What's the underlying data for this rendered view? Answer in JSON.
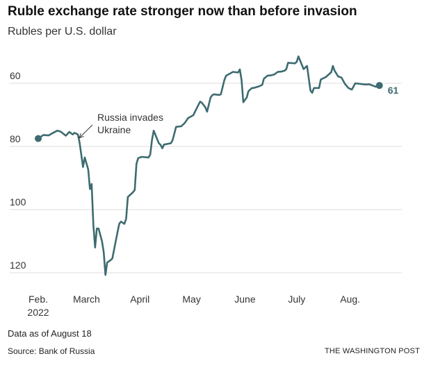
{
  "title": "Ruble exchange rate stronger now than before invasion",
  "subtitle": "Rubles per U.S. dollar",
  "note": "Data as of August 18",
  "source": "Source: Bank of Russia",
  "credit": "THE WASHINGTON POST",
  "colors": {
    "line": "#3d6b70",
    "grid": "#dddddd",
    "text": "#222222"
  },
  "chart_data": {
    "type": "line",
    "y_inverted": true,
    "ylim": [
      60,
      120
    ],
    "yticks": [
      "60",
      "80",
      "100",
      "120"
    ],
    "y_tick_values": [
      60,
      80,
      100,
      120
    ],
    "xlim": [
      "2022-02-01",
      "2022-08-31"
    ],
    "x_ticks": [
      {
        "date": "2022-02-01",
        "label": "Feb.",
        "label2": "2022"
      },
      {
        "date": "2022-03-01",
        "label": "March",
        "label2": ""
      },
      {
        "date": "2022-04-01",
        "label": "April",
        "label2": ""
      },
      {
        "date": "2022-05-01",
        "label": "May",
        "label2": ""
      },
      {
        "date": "2022-06-01",
        "label": "June",
        "label2": ""
      },
      {
        "date": "2022-07-01",
        "label": "July",
        "label2": ""
      },
      {
        "date": "2022-08-01",
        "label": "Aug.",
        "label2": ""
      }
    ],
    "annotation": {
      "date": "2022-02-24",
      "lines": [
        "Russia invades",
        "Ukraine"
      ]
    },
    "end_label": "61",
    "grid": true,
    "series": [
      {
        "points": [
          [
            "2022-02-01",
            77.5
          ],
          [
            "2022-02-04",
            76.4
          ],
          [
            "2022-02-07",
            76.5
          ],
          [
            "2022-02-09",
            75.9
          ],
          [
            "2022-02-12",
            75.0
          ],
          [
            "2022-02-14",
            75.3
          ],
          [
            "2022-02-17",
            76.6
          ],
          [
            "2022-02-19",
            75.4
          ],
          [
            "2022-02-21",
            76.2
          ],
          [
            "2022-02-22",
            75.7
          ],
          [
            "2022-02-24",
            76.2
          ],
          [
            "2022-02-25",
            78.8
          ],
          [
            "2022-02-27",
            86.5
          ],
          [
            "2022-02-28",
            83.5
          ],
          [
            "2022-03-02",
            87.3
          ],
          [
            "2022-03-03",
            93.5
          ],
          [
            "2022-03-04",
            91.9
          ],
          [
            "2022-03-05",
            104.8
          ],
          [
            "2022-03-06",
            112.0
          ],
          [
            "2022-03-07",
            106.0
          ],
          [
            "2022-03-08",
            106.0
          ],
          [
            "2022-03-10",
            110.0
          ],
          [
            "2022-03-11",
            113.5
          ],
          [
            "2022-03-12",
            120.7
          ],
          [
            "2022-03-13",
            116.8
          ],
          [
            "2022-03-15",
            116.0
          ],
          [
            "2022-03-16",
            115.5
          ],
          [
            "2022-03-18",
            110.0
          ],
          [
            "2022-03-20",
            104.5
          ],
          [
            "2022-03-21",
            103.8
          ],
          [
            "2022-03-23",
            104.5
          ],
          [
            "2022-03-24",
            103.0
          ],
          [
            "2022-03-25",
            96.0
          ],
          [
            "2022-03-26",
            95.5
          ],
          [
            "2022-03-28",
            94.5
          ],
          [
            "2022-03-29",
            93.8
          ],
          [
            "2022-03-30",
            85.5
          ],
          [
            "2022-03-31",
            83.7
          ],
          [
            "2022-04-02",
            83.3
          ],
          [
            "2022-04-06",
            83.5
          ],
          [
            "2022-04-07",
            82.6
          ],
          [
            "2022-04-08",
            78.0
          ],
          [
            "2022-04-09",
            75.0
          ],
          [
            "2022-04-12",
            79.0
          ],
          [
            "2022-04-13",
            79.5
          ],
          [
            "2022-04-14",
            80.6
          ],
          [
            "2022-04-15",
            79.4
          ],
          [
            "2022-04-19",
            79.0
          ],
          [
            "2022-04-20",
            78.0
          ],
          [
            "2022-04-22",
            73.8
          ],
          [
            "2022-04-25",
            73.6
          ],
          [
            "2022-04-27",
            72.6
          ],
          [
            "2022-04-29",
            71.0
          ],
          [
            "2022-05-02",
            70.1
          ],
          [
            "2022-05-04",
            67.9
          ],
          [
            "2022-05-05",
            66.8
          ],
          [
            "2022-05-06",
            65.8
          ],
          [
            "2022-05-07",
            66.2
          ],
          [
            "2022-05-09",
            67.6
          ],
          [
            "2022-05-10",
            69.0
          ],
          [
            "2022-05-12",
            64.5
          ],
          [
            "2022-05-13",
            63.8
          ],
          [
            "2022-05-14",
            63.5
          ],
          [
            "2022-05-17",
            63.7
          ],
          [
            "2022-05-18",
            63.5
          ],
          [
            "2022-05-20",
            59.0
          ],
          [
            "2022-05-21",
            57.6
          ],
          [
            "2022-05-25",
            56.4
          ],
          [
            "2022-05-28",
            56.6
          ],
          [
            "2022-05-29",
            55.6
          ],
          [
            "2022-05-30",
            59.0
          ],
          [
            "2022-05-31",
            66.0
          ],
          [
            "2022-06-02",
            64.5
          ],
          [
            "2022-06-03",
            62.5
          ],
          [
            "2022-06-05",
            61.5
          ],
          [
            "2022-06-06",
            61.5
          ],
          [
            "2022-06-09",
            61.0
          ],
          [
            "2022-06-11",
            60.5
          ],
          [
            "2022-06-12",
            58.5
          ],
          [
            "2022-06-14",
            57.6
          ],
          [
            "2022-06-16",
            57.5
          ],
          [
            "2022-06-18",
            57.2
          ],
          [
            "2022-06-20",
            56.4
          ],
          [
            "2022-06-22",
            56.3
          ],
          [
            "2022-06-24",
            56.0
          ],
          [
            "2022-06-25",
            55.5
          ],
          [
            "2022-06-26",
            53.5
          ],
          [
            "2022-06-30",
            53.7
          ],
          [
            "2022-07-01",
            53.2
          ],
          [
            "2022-07-02",
            51.5
          ],
          [
            "2022-07-05",
            55.5
          ],
          [
            "2022-07-07",
            54.5
          ],
          [
            "2022-07-08",
            58.5
          ],
          [
            "2022-07-09",
            62.3
          ],
          [
            "2022-07-10",
            63.0
          ],
          [
            "2022-07-11",
            61.5
          ],
          [
            "2022-07-14",
            61.5
          ],
          [
            "2022-07-15",
            58.8
          ],
          [
            "2022-07-18",
            58.0
          ],
          [
            "2022-07-21",
            56.5
          ],
          [
            "2022-07-22",
            54.5
          ],
          [
            "2022-07-23",
            56.0
          ],
          [
            "2022-07-25",
            57.8
          ],
          [
            "2022-07-27",
            58.2
          ],
          [
            "2022-07-29",
            60.2
          ],
          [
            "2022-07-31",
            61.5
          ],
          [
            "2022-08-02",
            62.0
          ],
          [
            "2022-08-04",
            60.0
          ],
          [
            "2022-08-07",
            60.2
          ],
          [
            "2022-08-10",
            60.4
          ],
          [
            "2022-08-12",
            60.3
          ],
          [
            "2022-08-14",
            60.7
          ],
          [
            "2022-08-16",
            61.1
          ],
          [
            "2022-08-18",
            60.7
          ]
        ]
      }
    ]
  }
}
